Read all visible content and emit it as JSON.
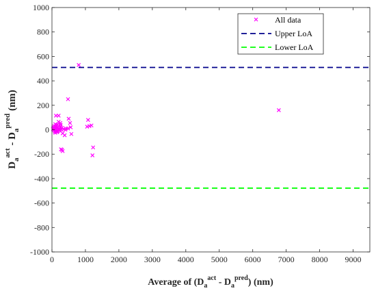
{
  "chart_data": {
    "type": "scatter",
    "xlabel": {
      "prefix": "Average of (D",
      "sub1": "a",
      "sup1": "act",
      "mid": " - D",
      "sub2": "a",
      "sup2": "pred",
      "suffix": ") (nm)"
    },
    "ylabel": {
      "prefix": "D",
      "sub1": "a",
      "sup1": "act",
      "mid": " - D",
      "sub2": "a",
      "sup2": "pred",
      "suffix": " (nm)"
    },
    "xlim": [
      0,
      9500
    ],
    "ylim": [
      -1000,
      1000
    ],
    "x_ticks": [
      0,
      1000,
      2000,
      3000,
      4000,
      5000,
      6000,
      7000,
      8000,
      9000
    ],
    "y_ticks": [
      -1000,
      -800,
      -600,
      -400,
      -200,
      0,
      200,
      400,
      600,
      800,
      1000
    ],
    "grid": false,
    "legend_position": "top-right",
    "series": [
      {
        "name": "All data",
        "color": "#FF00FF",
        "marker": "x",
        "x": [
          800,
          480,
          6780,
          120,
          200,
          1080,
          1120,
          1180,
          1050,
          1230,
          1210,
          500,
          540,
          560,
          480,
          580,
          270,
          300,
          320,
          260,
          200,
          250,
          100,
          130,
          160,
          60,
          80,
          110,
          140,
          170,
          190,
          210,
          230,
          90,
          150,
          180,
          220,
          260,
          300,
          350,
          400,
          420,
          70,
          120,
          240,
          320,
          380,
          30,
          50,
          100,
          160,
          200,
          280,
          40,
          60,
          90,
          130
        ],
        "y": [
          530,
          250,
          160,
          115,
          115,
          80,
          30,
          35,
          25,
          -145,
          -210,
          90,
          55,
          20,
          10,
          -35,
          -160,
          -165,
          -175,
          40,
          65,
          55,
          45,
          35,
          40,
          10,
          5,
          0,
          15,
          20,
          5,
          -5,
          0,
          -15,
          -20,
          -10,
          10,
          25,
          15,
          5,
          0,
          10,
          30,
          25,
          20,
          -30,
          -45,
          5,
          -5,
          -25,
          -15,
          30,
          0,
          15,
          20,
          -10,
          5
        ]
      },
      {
        "name": "Upper LoA",
        "color": "#00008B",
        "style": "dashed",
        "y": 510
      },
      {
        "name": "Lower LoA",
        "color": "#00FF00",
        "style": "dashed",
        "y": -478
      }
    ]
  }
}
